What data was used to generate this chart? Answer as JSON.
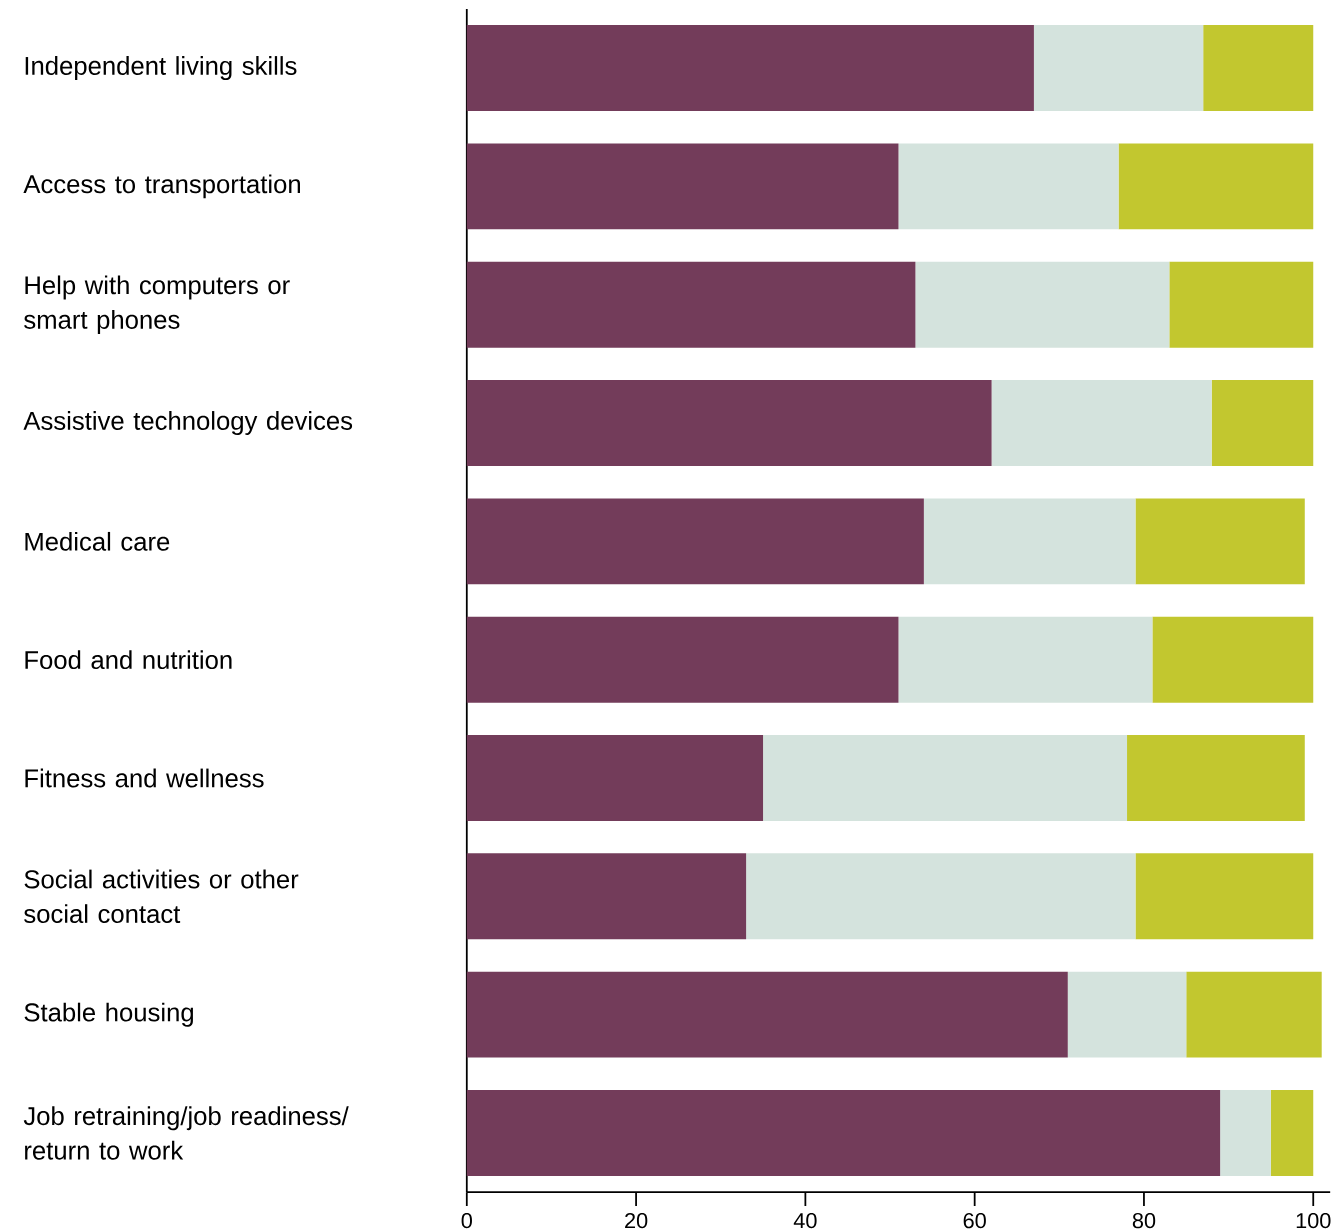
{
  "chart_data": {
    "type": "bar",
    "orientation": "horizontal",
    "stacked": true,
    "categories": [
      "Independent living skills",
      "Access to transportation",
      "Help with computers or smart phones",
      "Assistive technology devices",
      "Medical care",
      "Food and nutrition",
      "Fitness and wellness",
      "Social activities or other social contact",
      "Stable housing",
      "Job retraining/job readiness/ return to work"
    ],
    "series": [
      {
        "color": "#733c5a",
        "values": [
          67,
          51,
          53,
          62,
          54,
          51,
          35,
          33,
          71,
          89
        ]
      },
      {
        "color": "#d4e3dd",
        "values": [
          20,
          26,
          30,
          26,
          25,
          30,
          43,
          46,
          14,
          6
        ]
      },
      {
        "color": "#c2c72f",
        "values": [
          13,
          23,
          17,
          12,
          20,
          19,
          21,
          21,
          16,
          5
        ]
      }
    ],
    "xlim": [
      0,
      102
    ],
    "xticks": [
      0,
      20,
      40,
      60,
      80,
      100
    ],
    "grid": false
  }
}
